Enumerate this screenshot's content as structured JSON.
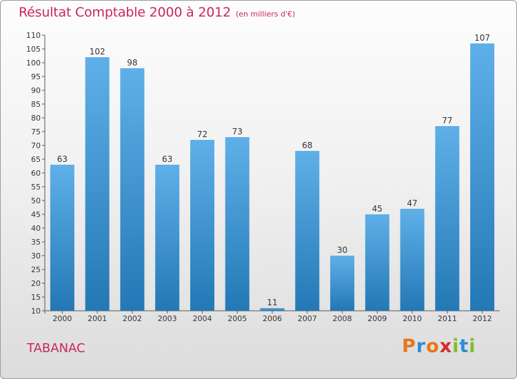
{
  "header": {
    "title": "Résultat Comptable 2000 à 2012",
    "subtitle": "(en milliers d'€)"
  },
  "footer": {
    "commune": "TABANAC",
    "logo_text": "Proxiti",
    "logo_colors": [
      "#e8761a",
      "#2a8fd6",
      "#e8761a",
      "#d42a2a",
      "#7fbf2a",
      "#2a8fd6",
      "#7fbf2a"
    ]
  },
  "colors": {
    "title": "#c8275c",
    "bar_light": "#5fb0e8",
    "bar_dark": "#2378b5"
  },
  "chart_data": {
    "type": "bar",
    "title": "Résultat Comptable 2000 à 2012",
    "subtitle": "(en milliers d'€)",
    "xlabel": "",
    "ylabel": "",
    "categories": [
      "2000",
      "2001",
      "2002",
      "2003",
      "2004",
      "2005",
      "2006",
      "2007",
      "2008",
      "2009",
      "2010",
      "2011",
      "2012"
    ],
    "values": [
      63,
      102,
      98,
      63,
      72,
      73,
      11,
      68,
      30,
      45,
      47,
      77,
      107
    ],
    "data_labels": [
      "63",
      "102",
      "98",
      "63",
      "72",
      "73",
      "11",
      "68",
      "30",
      "45",
      "47",
      "77",
      "107"
    ],
    "ylim": [
      10,
      110
    ],
    "yticks": [
      "10",
      "15",
      "20",
      "25",
      "30",
      "35",
      "40",
      "45",
      "50",
      "55",
      "60",
      "65",
      "70",
      "75",
      "80",
      "85",
      "90",
      "95",
      "100",
      "105",
      "110"
    ],
    "grid": false,
    "legend": "none"
  }
}
